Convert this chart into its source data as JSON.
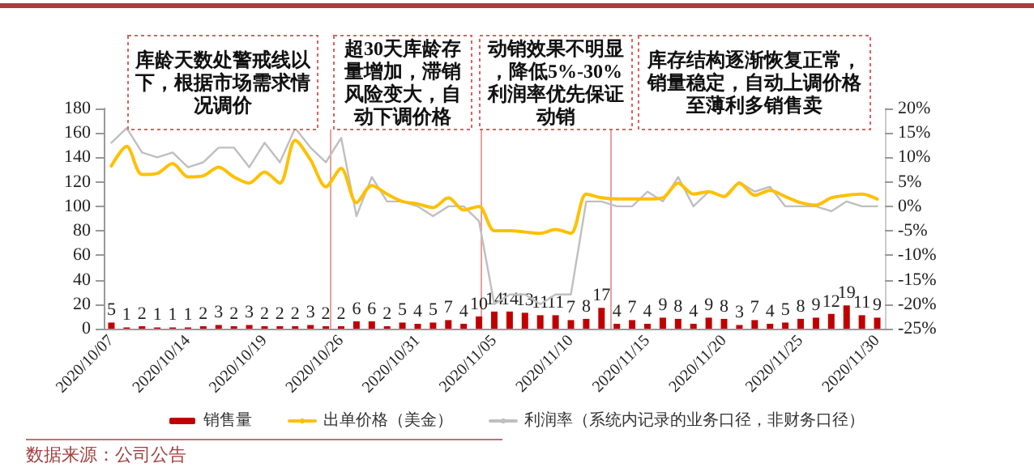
{
  "chart_data": {
    "type": "bar",
    "categories": [
      "2020/10/07",
      null,
      null,
      null,
      null,
      "2020/10/14",
      null,
      null,
      null,
      null,
      "2020/10/19",
      null,
      null,
      null,
      null,
      "2020/10/26",
      null,
      null,
      null,
      null,
      "2020/10/31",
      null,
      null,
      null,
      null,
      "2020/11/05",
      null,
      null,
      null,
      null,
      "2020/11/10",
      null,
      null,
      null,
      null,
      "2020/11/15",
      null,
      null,
      null,
      null,
      "2020/11/20",
      null,
      null,
      null,
      null,
      "2020/11/25",
      null,
      null,
      null,
      null,
      "2020/11/30"
    ],
    "series": [
      {
        "name": "销售量",
        "color": "#c00000",
        "data_labels": true,
        "values": [
          5,
          1,
          2,
          1,
          1,
          1,
          2,
          3,
          2,
          3,
          2,
          2,
          2,
          3,
          2,
          2,
          6,
          6,
          2,
          5,
          4,
          5,
          7,
          4,
          10,
          14,
          14,
          13,
          11,
          11,
          7,
          8,
          17,
          4,
          7,
          4,
          9,
          8,
          4,
          9,
          8,
          3,
          7,
          4,
          5,
          8,
          9,
          12,
          19,
          11,
          9
        ]
      },
      {
        "name": "出单价格（美金）",
        "type": "line",
        "color": "#ffc000",
        "values": [
          133,
          149,
          126,
          127,
          135,
          124,
          125,
          132,
          124,
          119,
          128,
          119,
          154,
          138,
          116,
          131,
          103,
          117,
          110,
          104,
          102,
          99,
          107,
          97,
          100,
          80,
          80,
          79,
          78,
          81,
          78,
          110,
          107,
          106,
          106,
          106,
          107,
          119,
          110,
          112,
          108,
          119,
          109,
          113,
          108,
          103,
          101,
          107,
          109,
          110,
          106
        ]
      },
      {
        "name": "利润率（系统内记录的业务口径，非财务口径）",
        "type": "line",
        "axis": "y2",
        "color": "#bfbfbf",
        "values": [
          13,
          16,
          11,
          10,
          11,
          8,
          9,
          12,
          12,
          8,
          13,
          9,
          16,
          12,
          9,
          14,
          -2,
          6,
          1,
          1,
          0,
          -2,
          0,
          0,
          -3,
          -20,
          -18,
          -18,
          -20,
          -18,
          -18,
          1,
          1,
          0,
          0,
          3,
          1,
          6,
          0,
          3,
          2,
          5,
          3,
          4,
          0,
          0,
          0,
          -1,
          1,
          0,
          0
        ]
      }
    ],
    "ylim": [
      0,
      180
    ],
    "yticks": [
      0,
      20,
      40,
      60,
      80,
      100,
      120,
      140,
      160,
      180
    ],
    "y2lim": [
      -25,
      20
    ],
    "y2ticks": [
      {
        "value": -25,
        "label": "-25%"
      },
      {
        "value": -20,
        "label": "-20%"
      },
      {
        "value": -15,
        "label": "-15%"
      },
      {
        "value": -10,
        "label": "-10%"
      },
      {
        "value": -5,
        "label": "-5%"
      },
      {
        "value": 0,
        "label": "0%"
      },
      {
        "value": 5,
        "label": "5%"
      },
      {
        "value": 10,
        "label": "10%"
      },
      {
        "value": 15,
        "label": "15%"
      },
      {
        "value": 20,
        "label": "20%"
      }
    ],
    "annotations": [
      "库龄天数处警戒线以下，根据市场需求情况调价",
      "超30天库龄存量增加，滞销风险变大，自动下调价格",
      "动销效果不明显，降低5%-30%利润率优先保证动销",
      "库存结构逐渐恢复正常，销量稳定，自动上调价格至薄利多销售卖",
      "数据来源：公司公告"
    ],
    "grid": false,
    "legend": "bottom",
    "marker": "none",
    "line_style": "solid"
  }
}
